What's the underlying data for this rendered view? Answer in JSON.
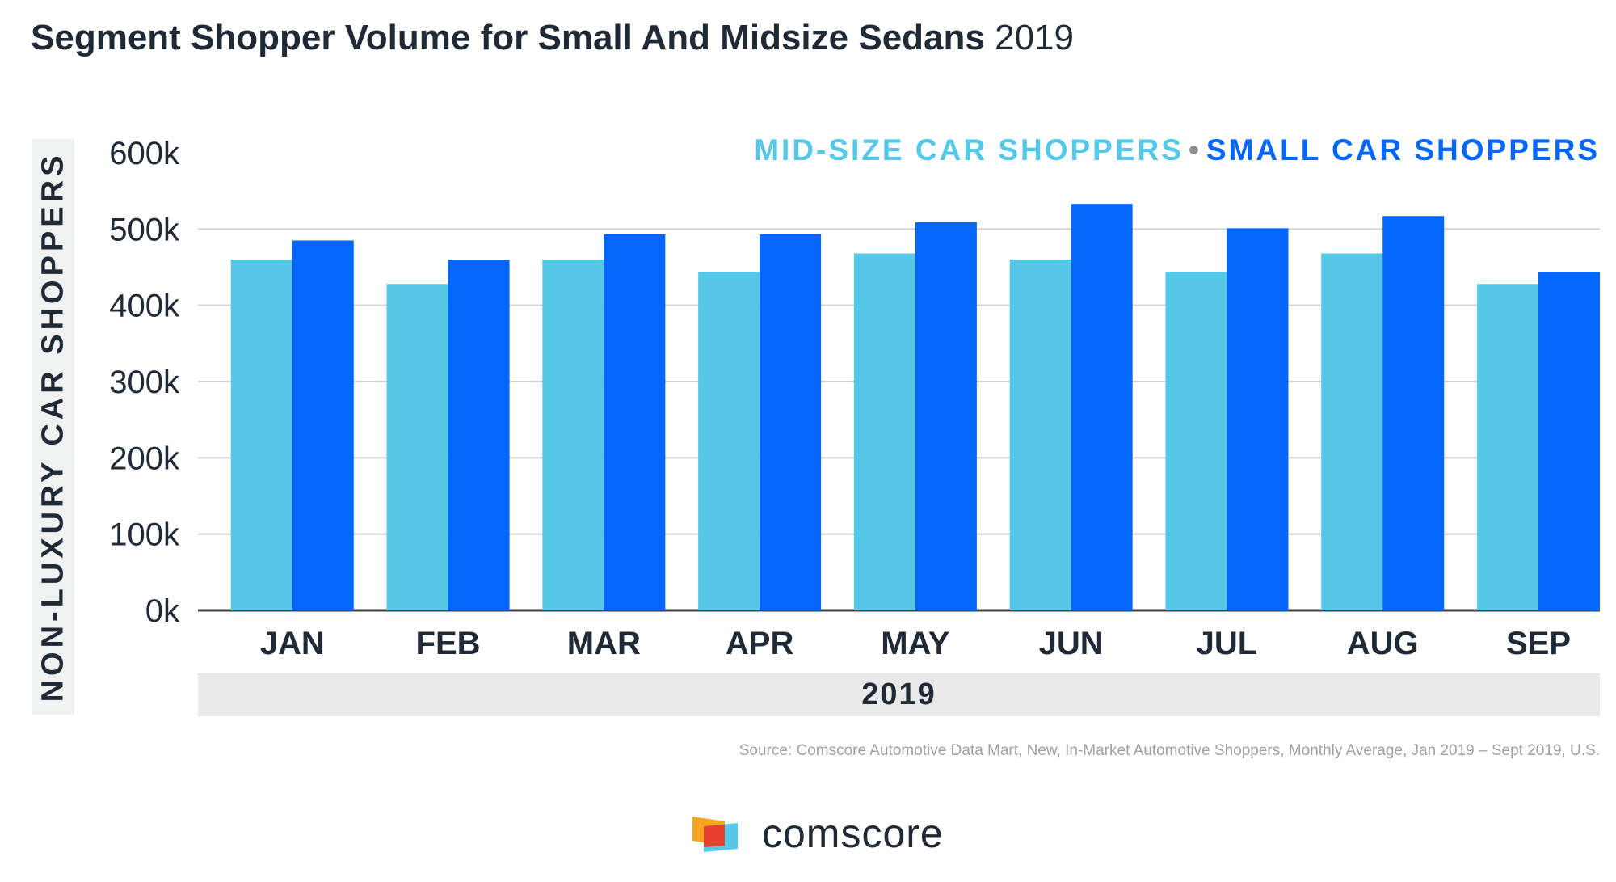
{
  "title": {
    "main": "Segment Shopper Volume for Small And Midsize Sedans",
    "year": "2019"
  },
  "legend": {
    "series_1": "MID-SIZE CAR SHOPPERS",
    "separator": "•",
    "series_2": "SMALL CAR SHOPPERS"
  },
  "group_label": "2019",
  "source": "Source: Comscore Automotive Data Mart, New, In-Market Automotive Shoppers, Monthly Average, Jan 2019 – Sept 2019, U.S.",
  "logo_text": "comscore",
  "colors": {
    "midsize": "#55c8e8",
    "small": "#0466fb",
    "text": "#1f2a36",
    "grid": "#d0d0d0"
  },
  "chart_data": {
    "type": "bar",
    "title": "Segment Shopper Volume for Small And Midsize Sedans 2019",
    "xlabel": "2019",
    "ylabel": "NON-LUXURY CAR SHOPPERS",
    "categories": [
      "JAN",
      "FEB",
      "MAR",
      "APR",
      "MAY",
      "JUN",
      "JUL",
      "AUG",
      "SEP"
    ],
    "series": [
      {
        "name": "MID-SIZE CAR SHOPPERS",
        "values": [
          460000,
          428000,
          460000,
          444000,
          468000,
          460000,
          444000,
          468000,
          428000
        ]
      },
      {
        "name": "SMALL CAR SHOPPERS",
        "values": [
          485000,
          460000,
          493000,
          493000,
          509000,
          533000,
          501000,
          517000,
          444000
        ]
      }
    ],
    "ylim": [
      0,
      600000
    ],
    "yticks": [
      0,
      100000,
      200000,
      300000,
      400000,
      500000,
      600000
    ],
    "ytick_labels": [
      "0k",
      "100k",
      "200k",
      "300k",
      "400k",
      "500k",
      "600k"
    ],
    "grid": true,
    "legend_position": "top-right"
  }
}
